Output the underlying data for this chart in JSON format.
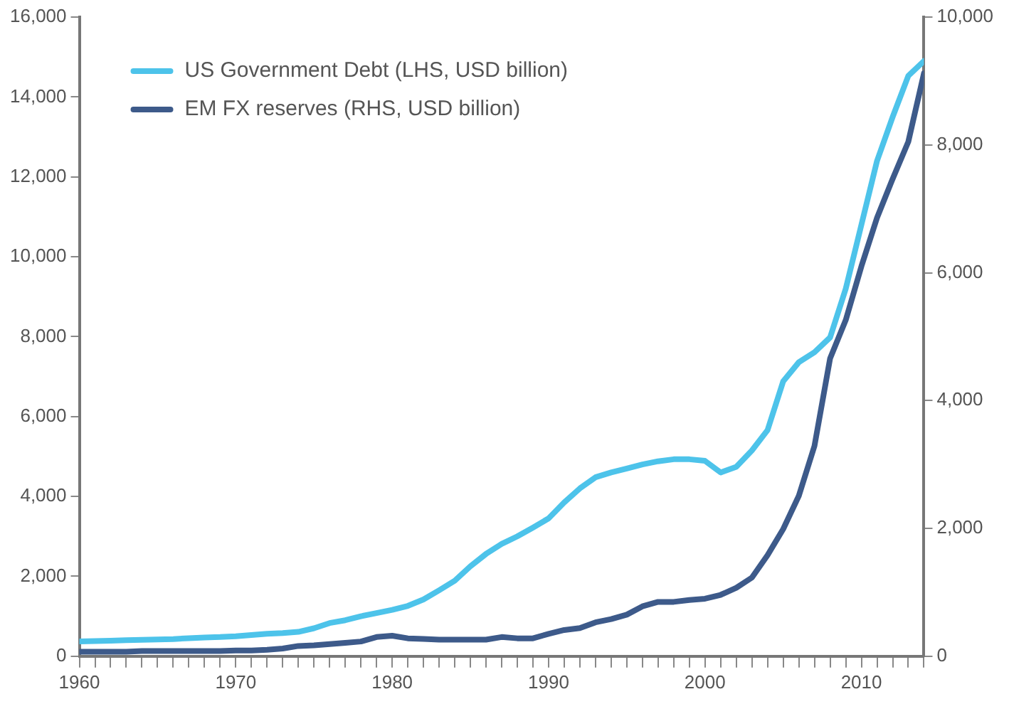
{
  "chart_data": {
    "type": "line",
    "x": [
      1960,
      1961,
      1962,
      1963,
      1964,
      1965,
      1966,
      1967,
      1968,
      1969,
      1970,
      1971,
      1972,
      1973,
      1974,
      1975,
      1976,
      1977,
      1978,
      1979,
      1980,
      1981,
      1982,
      1983,
      1984,
      1985,
      1986,
      1987,
      1988,
      1989,
      1990,
      1991,
      1992,
      1993,
      1994,
      1995,
      1996,
      1997,
      1998,
      1999,
      2000,
      2001,
      2002,
      2003,
      2004,
      2005,
      2006,
      2007,
      2008,
      2009,
      2010,
      2011,
      2012,
      2013,
      2014
    ],
    "series": [
      {
        "name": "US Government Debt (LHS, USD billion)",
        "color": "#4dc3ea",
        "values": [
          370,
          380,
          390,
          400,
          410,
          420,
          430,
          450,
          470,
          480,
          500,
          530,
          560,
          580,
          610,
          700,
          830,
          900,
          1000,
          1080,
          1160,
          1260,
          1420,
          1650,
          1890,
          2250,
          2560,
          2810,
          3000,
          3220,
          3450,
          3850,
          4200,
          4480,
          4600,
          4700,
          4800,
          4880,
          4930,
          4930,
          4890,
          4600,
          4740,
          5150,
          5660,
          6880,
          7360,
          7610,
          7980,
          9200,
          10800,
          12400,
          13500,
          14530,
          14900
        ]
      },
      {
        "name": "EM FX reserves (RHS, USD billion)",
        "color": "#3d5a8a",
        "axis": "y2",
        "values": [
          70,
          70,
          70,
          70,
          80,
          80,
          80,
          80,
          80,
          80,
          90,
          90,
          100,
          120,
          160,
          170,
          190,
          210,
          230,
          300,
          320,
          280,
          270,
          260,
          260,
          260,
          260,
          300,
          280,
          280,
          350,
          410,
          440,
          530,
          580,
          650,
          780,
          850,
          850,
          880,
          900,
          960,
          1070,
          1230,
          1580,
          1990,
          2510,
          3290,
          4660,
          5260,
          6100,
          6860,
          7470,
          8050,
          9120
        ]
      }
    ],
    "xlim": [
      1960,
      2014
    ],
    "xticks": [
      1960,
      {
        "value": 1961,
        "label": null
      },
      {
        "value": 1962,
        "label": null
      },
      {
        "value": 1963,
        "label": null
      },
      {
        "value": 1964,
        "label": null
      },
      {
        "value": 1965,
        "label": null
      },
      {
        "value": 1966,
        "label": null
      },
      {
        "value": 1967,
        "label": null
      },
      {
        "value": 1968,
        "label": null
      },
      {
        "value": 1969,
        "label": null
      },
      1970,
      {
        "value": 1971,
        "label": null
      },
      {
        "value": 1972,
        "label": null
      },
      {
        "value": 1973,
        "label": null
      },
      {
        "value": 1974,
        "label": null
      },
      {
        "value": 1975,
        "label": null
      },
      {
        "value": 1976,
        "label": null
      },
      {
        "value": 1977,
        "label": null
      },
      {
        "value": 1978,
        "label": null
      },
      {
        "value": 1979,
        "label": null
      },
      1980,
      {
        "value": 1981,
        "label": null
      },
      {
        "value": 1982,
        "label": null
      },
      {
        "value": 1983,
        "label": null
      },
      {
        "value": 1984,
        "label": null
      },
      {
        "value": 1985,
        "label": null
      },
      {
        "value": 1986,
        "label": null
      },
      {
        "value": 1987,
        "label": null
      },
      {
        "value": 1988,
        "label": null
      },
      {
        "value": 1989,
        "label": null
      },
      1990,
      {
        "value": 1991,
        "label": null
      },
      {
        "value": 1992,
        "label": null
      },
      {
        "value": 1993,
        "label": null
      },
      {
        "value": 1994,
        "label": null
      },
      {
        "value": 1995,
        "label": null
      },
      {
        "value": 1996,
        "label": null
      },
      {
        "value": 1997,
        "label": null
      },
      {
        "value": 1998,
        "label": null
      },
      {
        "value": 1999,
        "label": null
      },
      2000,
      {
        "value": 2001,
        "label": null
      },
      {
        "value": 2002,
        "label": null
      },
      {
        "value": 2003,
        "label": null
      },
      {
        "value": 2004,
        "label": null
      },
      {
        "value": 2005,
        "label": null
      },
      {
        "value": 2006,
        "label": null
      },
      {
        "value": 2007,
        "label": null
      },
      {
        "value": 2008,
        "label": null
      },
      {
        "value": 2009,
        "label": null
      },
      2010,
      {
        "value": 2011,
        "label": null
      },
      {
        "value": 2012,
        "label": null
      },
      {
        "value": 2013,
        "label": null
      },
      {
        "value": 2014,
        "label": null
      }
    ],
    "ylim": [
      0,
      16000
    ],
    "yticks": [
      0,
      {
        "value": 2000,
        "label": "2,000"
      },
      {
        "value": 4000,
        "label": "4,000"
      },
      {
        "value": 6000,
        "label": "6,000"
      },
      {
        "value": 8000,
        "label": "8,000"
      },
      {
        "value": 10000,
        "label": "10,000"
      },
      {
        "value": 12000,
        "label": "12,000"
      },
      {
        "value": 14000,
        "label": "14,000"
      },
      {
        "value": 16000,
        "label": "16,000"
      }
    ],
    "y2lim": [
      0,
      10000
    ],
    "y2ticks": [
      0,
      {
        "value": 2000,
        "label": "2,000"
      },
      {
        "value": 4000,
        "label": "4,000"
      },
      {
        "value": 6000,
        "label": "6,000"
      },
      {
        "value": 8000,
        "label": "8,000"
      },
      {
        "value": 10000,
        "label": "10,000"
      }
    ],
    "grid": false,
    "legend": "top left",
    "marker": "none",
    "line_style": "solid"
  }
}
